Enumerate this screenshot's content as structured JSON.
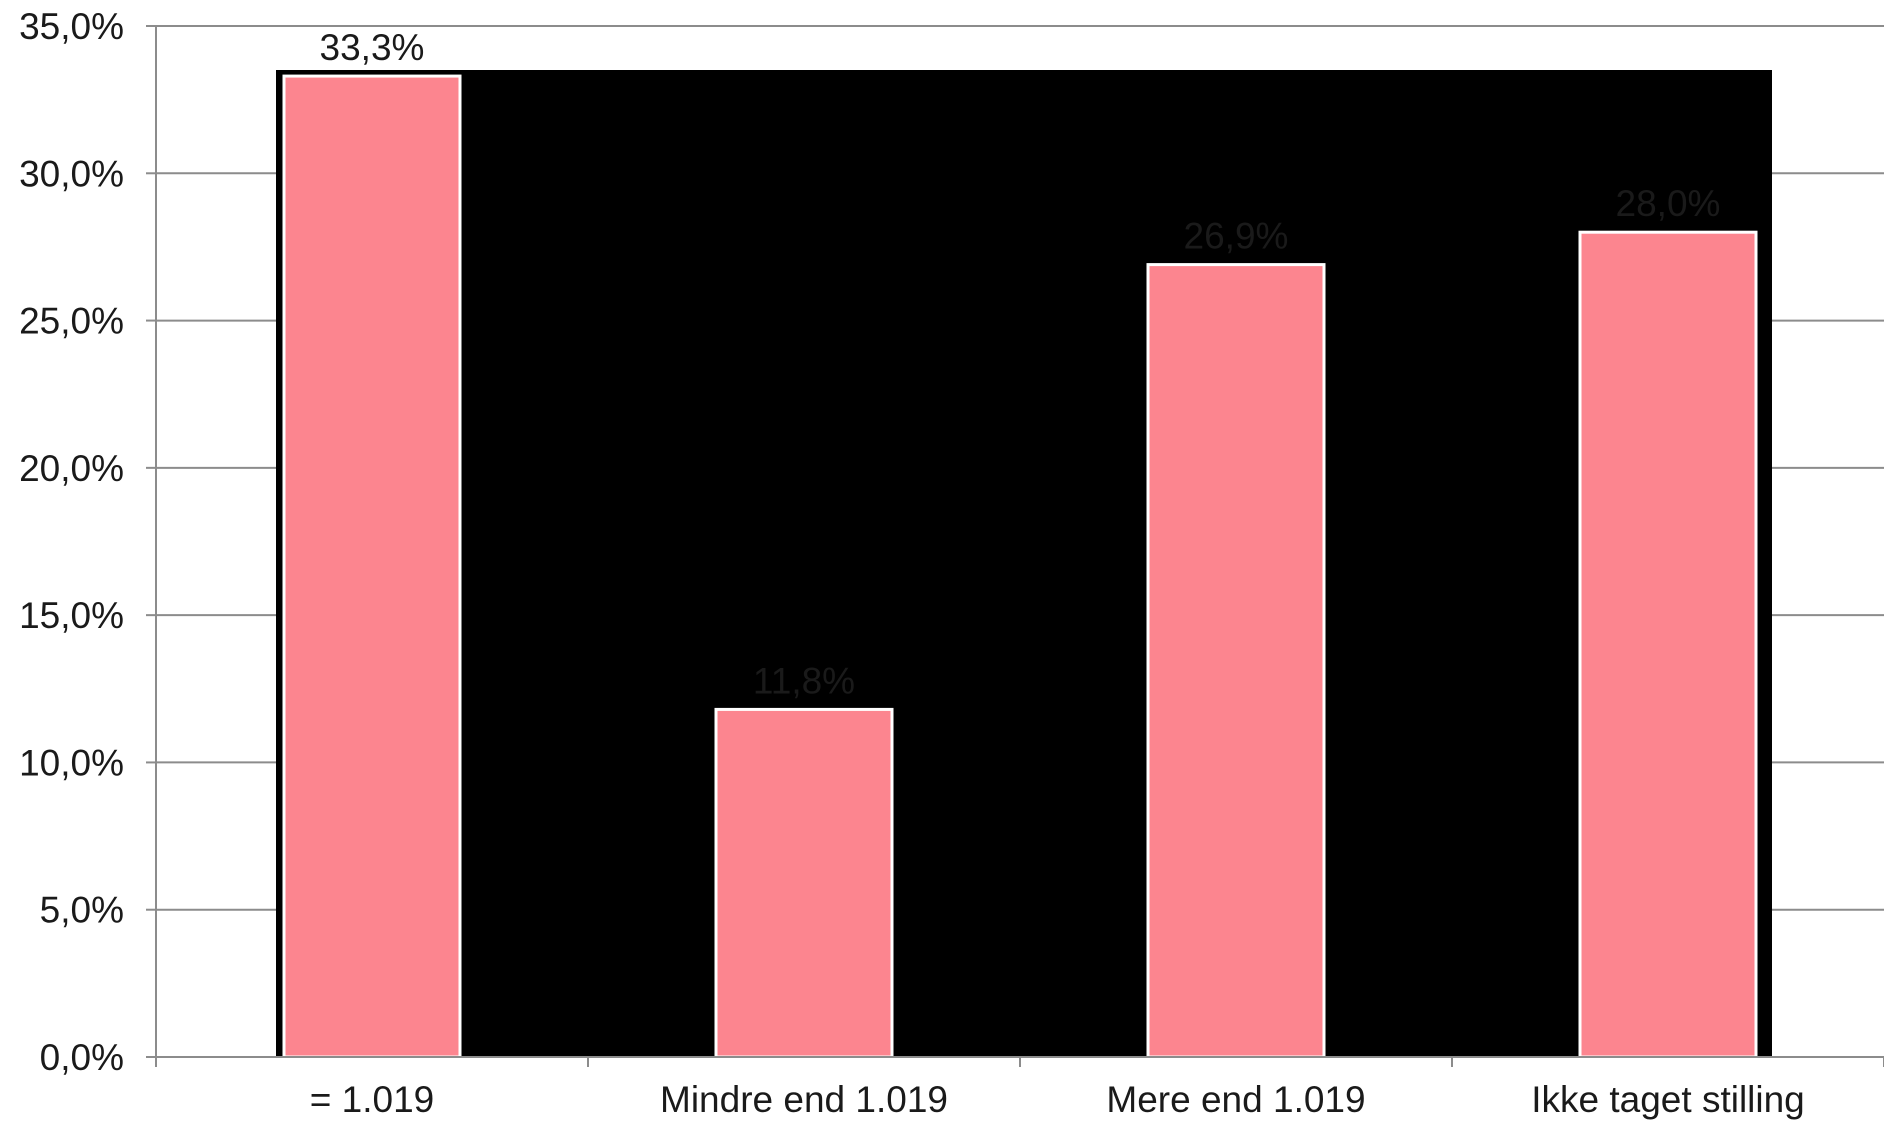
{
  "chart_data": {
    "type": "bar",
    "categories": [
      "= 1.019",
      "Mindre end 1.019",
      "Mere end 1.019",
      "Ikke taget stilling"
    ],
    "values": [
      33.3,
      11.8,
      26.9,
      28.0
    ],
    "data_labels": [
      "33,3%",
      "11,8%",
      "26,9%",
      "28,0%"
    ],
    "ylim": [
      0,
      35
    ],
    "yticks": [
      0,
      5,
      10,
      15,
      20,
      25,
      30,
      35
    ],
    "ytick_labels": [
      "0,0%",
      "5,0%",
      "10,0%",
      "15,0%",
      "20,0%",
      "25,0%",
      "30,0%",
      "35,0%"
    ],
    "grid": true,
    "colors": {
      "bar_fill": "#fc858f",
      "bar_edge": "#ffffff",
      "plot_background": "#000000",
      "gridline": "#8c8c8c",
      "axis": "#8c8c8c",
      "text": "#1a1a1a"
    }
  }
}
